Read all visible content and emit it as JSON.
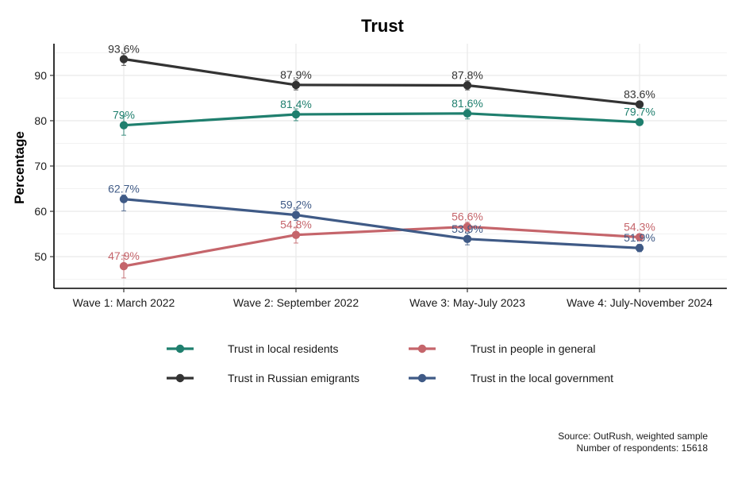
{
  "chart_data": {
    "type": "line",
    "title": "Trust",
    "xlabel": "",
    "ylabel": "Percentage",
    "ylim": [
      43,
      97
    ],
    "yticks": [
      50,
      60,
      70,
      80,
      90
    ],
    "grid": true,
    "legend_position": "bottom",
    "categories": [
      "Wave 1: March 2022",
      "Wave 2: September 2022",
      "Wave 3: May-July 2023",
      "Wave 4: July-November 2024"
    ],
    "series": [
      {
        "name": "Trust in local residents",
        "color": "#1f7f6e",
        "values": [
          79,
          81.4,
          81.6,
          79.7
        ],
        "labels": [
          "79%",
          "81.4%",
          "81.6%",
          "79.7%"
        ],
        "error_low": [
          76.8,
          80,
          80.4,
          79.2
        ],
        "error_high": [
          81,
          82.6,
          82.6,
          80.3
        ]
      },
      {
        "name": "Trust in Russian emigrants",
        "color": "#333333",
        "values": [
          93.6,
          87.9,
          87.8,
          83.6
        ],
        "labels": [
          "93.6%",
          "87.9%",
          "87.8%",
          "83.6%"
        ],
        "error_low": [
          92.2,
          86.8,
          86.8,
          83
        ],
        "error_high": [
          94.8,
          89,
          88.8,
          84.2
        ]
      },
      {
        "name": "Trust in people in general",
        "color": "#c5656b",
        "values": [
          47.9,
          54.8,
          56.6,
          54.3
        ],
        "labels": [
          "47.9%",
          "54.8%",
          "56.6%",
          "54.3%"
        ],
        "error_low": [
          45.3,
          53,
          55.6,
          53.6
        ],
        "error_high": [
          50.3,
          56.5,
          57.6,
          55
        ]
      },
      {
        "name": "Trust in the local government",
        "color": "#3f5a86",
        "values": [
          62.7,
          59.2,
          53.9,
          51.9
        ],
        "labels": [
          "62.7%",
          "59.2%",
          "53.9%",
          "51.9%"
        ],
        "error_low": [
          60.1,
          58,
          52.6,
          51.1
        ],
        "error_high": [
          63.6,
          60.4,
          55.2,
          52.7
        ]
      }
    ],
    "legend_order": [
      0,
      2,
      1,
      3
    ],
    "caption": [
      "Source: OutRush, weighted sample",
      "Number of respondents: 15618"
    ]
  }
}
